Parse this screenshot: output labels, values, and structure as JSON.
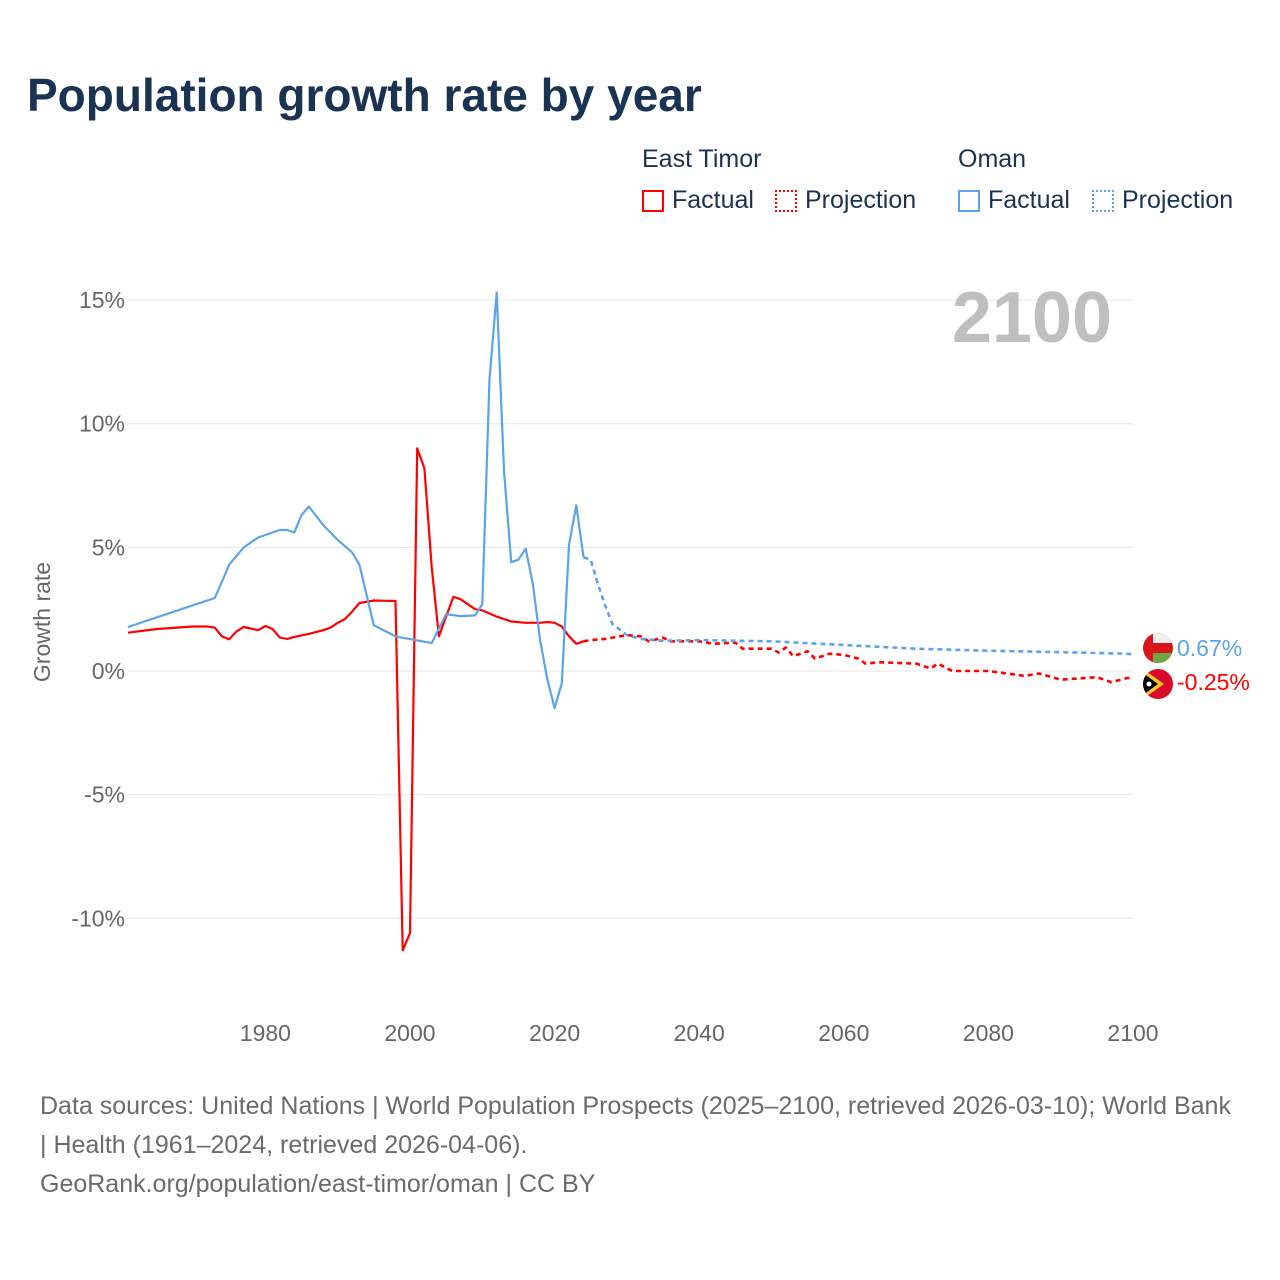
{
  "colors": {
    "east_timor": "#ff0000",
    "oman": "#5ba3ea",
    "grid": "#e6e6e6",
    "axis_text": "#666666",
    "year_label": "#bfbfbf"
  },
  "legend": {
    "groups": [
      {
        "name": "East Timor",
        "factual": "Factual",
        "projection": "Projection"
      },
      {
        "name": "Oman",
        "factual": "Factual",
        "projection": "Projection"
      }
    ]
  },
  "end_labels": {
    "oman": "0.67%",
    "east_timor": "-0.25%"
  },
  "icons": {
    "oman": "oman-flag-icon",
    "east_timor": "east-timor-flag-icon"
  },
  "footer": {
    "sources": "Data sources: United Nations | World Population Prospects (2025–2100, retrieved 2026-03-10); World Bank | Health (1961–2024, retrieved 2026-04-06).",
    "credit": "GeoRank.org/population/east-timor/oman | CC BY"
  },
  "chart_data": {
    "type": "line",
    "title": "Population growth rate by year",
    "year_label": "2100",
    "xlabel": "",
    "ylabel": "Growth rate",
    "xlim": [
      1961,
      2100
    ],
    "ylim": [
      -13,
      17
    ],
    "x_ticks": [
      1980,
      2000,
      2020,
      2040,
      2060,
      2080,
      2100
    ],
    "y_ticks": [
      15,
      10,
      5,
      0,
      -5,
      -10
    ],
    "y_tick_labels": [
      "15%",
      "10%",
      "5%",
      "0%",
      "-5%",
      "-10%"
    ],
    "grid": true,
    "legend_position": "top-right",
    "series": [
      {
        "name": "East Timor",
        "kind": "Factual",
        "color": "#ff0000",
        "dashed": false,
        "x": [
          1961,
          1965,
          1970,
          1972,
          1973,
          1974,
          1975,
          1976,
          1977,
          1979,
          1980,
          1981,
          1982,
          1983,
          1984,
          1986,
          1988,
          1989,
          1990,
          1991,
          1992,
          1993,
          1995,
          1998,
          1999,
          2000,
          2001,
          2002,
          2003,
          2004,
          2005,
          2006,
          2007,
          2008,
          2009,
          2010,
          2012,
          2014,
          2016,
          2018,
          2019,
          2020,
          2021,
          2022,
          2023,
          2024
        ],
        "y": [
          1.55,
          1.7,
          1.8,
          1.8,
          1.75,
          1.4,
          1.28,
          1.6,
          1.78,
          1.65,
          1.82,
          1.7,
          1.35,
          1.3,
          1.38,
          1.5,
          1.65,
          1.75,
          1.95,
          2.1,
          2.4,
          2.75,
          2.85,
          2.83,
          -11.3,
          -10.6,
          9.0,
          8.2,
          4.2,
          1.4,
          2.2,
          3.0,
          2.9,
          2.7,
          2.5,
          2.45,
          2.2,
          2.0,
          1.95,
          1.95,
          1.98,
          1.95,
          1.8,
          1.4,
          1.1,
          1.2
        ]
      },
      {
        "name": "East Timor",
        "kind": "Projection",
        "color": "#ff0000",
        "dashed": true,
        "x": [
          2024,
          2025,
          2027,
          2030,
          2032,
          2033,
          2035,
          2036,
          2040,
          2042,
          2045,
          2046,
          2050,
          2051,
          2052,
          2053,
          2055,
          2056,
          2058,
          2060,
          2062,
          2063,
          2065,
          2070,
          2072,
          2073,
          2075,
          2080,
          2085,
          2087,
          2090,
          2095,
          2097,
          2099,
          2100
        ],
        "y": [
          1.2,
          1.25,
          1.3,
          1.45,
          1.4,
          1.2,
          1.35,
          1.2,
          1.2,
          1.1,
          1.15,
          0.9,
          0.9,
          0.75,
          0.95,
          0.6,
          0.8,
          0.5,
          0.7,
          0.65,
          0.5,
          0.3,
          0.35,
          0.3,
          0.1,
          0.3,
          0.0,
          0.0,
          -0.2,
          -0.1,
          -0.35,
          -0.25,
          -0.45,
          -0.3,
          -0.25
        ]
      },
      {
        "name": "Oman",
        "kind": "Factual",
        "color": "#5ba3ea",
        "dashed": false,
        "x": [
          1961,
          1973,
          1975,
          1977,
          1979,
          1982,
          1983,
          1984,
          1985,
          1986,
          1988,
          1990,
          1992,
          1993,
          1995,
          1998,
          2003,
          2005,
          2007,
          2009,
          2010,
          2011,
          2012,
          2013,
          2014,
          2015,
          2016,
          2017,
          2018,
          2019,
          2020,
          2021,
          2022,
          2023,
          2024
        ],
        "y": [
          1.78,
          2.95,
          4.3,
          5.0,
          5.4,
          5.7,
          5.7,
          5.6,
          6.3,
          6.65,
          5.9,
          5.3,
          4.8,
          4.3,
          1.85,
          1.4,
          1.13,
          2.3,
          2.22,
          2.25,
          2.7,
          11.8,
          15.3,
          8.1,
          4.4,
          4.5,
          4.95,
          3.5,
          1.25,
          -0.35,
          -1.5,
          -0.5,
          5.1,
          6.7,
          4.6
        ]
      },
      {
        "name": "Oman",
        "kind": "Projection",
        "color": "#5ba3ea",
        "dashed": true,
        "x": [
          2024,
          2025,
          2026,
          2027,
          2028,
          2030,
          2032,
          2035,
          2040,
          2050,
          2060,
          2070,
          2080,
          2090,
          2099,
          2100
        ],
        "y": [
          4.6,
          4.5,
          3.5,
          2.65,
          1.9,
          1.45,
          1.3,
          1.22,
          1.25,
          1.2,
          1.05,
          0.9,
          0.82,
          0.76,
          0.7,
          0.67
        ]
      }
    ]
  }
}
